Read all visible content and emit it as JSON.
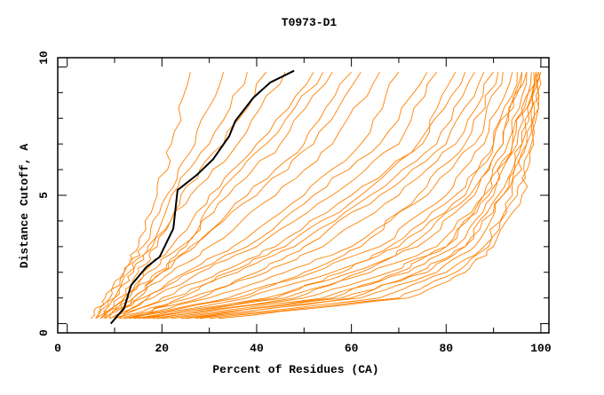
{
  "chart_data": {
    "type": "line",
    "title": "T0973-D1",
    "xlabel": "Percent of Residues (CA)",
    "ylabel": "Distance Cutoff, A",
    "xlim": [
      -2,
      101.7
    ],
    "ylim": [
      -0.36,
      10.36
    ],
    "xticks": [
      0,
      20,
      40,
      60,
      80,
      100
    ],
    "xticks_minor": [
      10,
      30,
      50,
      70,
      90
    ],
    "yticks": [
      0,
      5,
      10
    ],
    "yticks_minor": [
      1,
      2,
      3,
      4,
      6,
      7,
      8,
      9
    ],
    "grid": false,
    "colors": {
      "other_models": "#ff8000",
      "highlighted_model": "#000000"
    },
    "highlighted_series": {
      "name": "highlighted model",
      "points": [
        [
          9.2,
          0
        ],
        [
          12,
          0.6
        ],
        [
          13.5,
          1.5
        ],
        [
          16.7,
          2.2
        ],
        [
          19.5,
          2.6
        ],
        [
          22.4,
          3.7
        ],
        [
          23.3,
          5.2
        ],
        [
          27.4,
          5.8
        ],
        [
          30.8,
          6.4
        ],
        [
          34.2,
          7.3
        ],
        [
          35.5,
          7.9
        ],
        [
          39.3,
          8.8
        ],
        [
          42.9,
          9.4
        ],
        [
          47.9,
          9.85
        ]
      ]
    },
    "series": [
      [
        [
          6,
          0.2
        ],
        [
          9,
          1
        ],
        [
          12,
          2
        ],
        [
          15,
          3
        ],
        [
          19,
          5
        ],
        [
          22,
          7
        ],
        [
          26,
          9.8
        ]
      ],
      [
        [
          5,
          0.2
        ],
        [
          8,
          1
        ],
        [
          12,
          2
        ],
        [
          16,
          3
        ],
        [
          21,
          5
        ],
        [
          27,
          7
        ],
        [
          33,
          9.8
        ]
      ],
      [
        [
          7,
          0.2
        ],
        [
          10,
          1
        ],
        [
          13,
          2
        ],
        [
          17,
          3
        ],
        [
          22,
          5
        ],
        [
          30,
          7
        ],
        [
          38,
          9.8
        ]
      ],
      [
        [
          8,
          0.2
        ],
        [
          11,
          1
        ],
        [
          15,
          2
        ],
        [
          19,
          3
        ],
        [
          24,
          5
        ],
        [
          33,
          7
        ],
        [
          42,
          9.8
        ]
      ],
      [
        [
          6,
          0.2
        ],
        [
          10,
          1
        ],
        [
          14,
          2
        ],
        [
          18,
          3
        ],
        [
          26,
          5
        ],
        [
          36,
          7
        ],
        [
          46,
          9.8
        ]
      ],
      [
        [
          9,
          0.2
        ],
        [
          13,
          1
        ],
        [
          16,
          2
        ],
        [
          22,
          3
        ],
        [
          30,
          5
        ],
        [
          40,
          7
        ],
        [
          52,
          9.8
        ]
      ],
      [
        [
          7,
          0.2
        ],
        [
          12,
          1
        ],
        [
          17,
          2
        ],
        [
          24,
          3
        ],
        [
          34,
          5
        ],
        [
          45,
          7
        ],
        [
          56,
          9.8
        ]
      ],
      [
        [
          10,
          0.2
        ],
        [
          14,
          1
        ],
        [
          20,
          2
        ],
        [
          27,
          3
        ],
        [
          38,
          5
        ],
        [
          50,
          7
        ],
        [
          60,
          9.8
        ]
      ],
      [
        [
          8,
          0.2
        ],
        [
          14,
          1
        ],
        [
          22,
          2
        ],
        [
          30,
          3
        ],
        [
          44,
          5
        ],
        [
          56,
          7
        ],
        [
          66,
          9.8
        ]
      ],
      [
        [
          9,
          0.2
        ],
        [
          16,
          1
        ],
        [
          25,
          2
        ],
        [
          35,
          3
        ],
        [
          50,
          5
        ],
        [
          62,
          7
        ],
        [
          70,
          9.8
        ]
      ],
      [
        [
          10,
          0.2
        ],
        [
          18,
          1
        ],
        [
          28,
          2
        ],
        [
          40,
          3
        ],
        [
          56,
          5
        ],
        [
          70,
          7
        ],
        [
          78,
          9.8
        ]
      ],
      [
        [
          11,
          0.2
        ],
        [
          20,
          1
        ],
        [
          32,
          2
        ],
        [
          44,
          3
        ],
        [
          60,
          5
        ],
        [
          75,
          7
        ],
        [
          82,
          9.8
        ]
      ],
      [
        [
          9,
          0.2
        ],
        [
          22,
          1
        ],
        [
          36,
          2
        ],
        [
          48,
          3
        ],
        [
          64,
          5
        ],
        [
          78,
          7
        ],
        [
          86,
          9.8
        ]
      ],
      [
        [
          10,
          0.2
        ],
        [
          26,
          1
        ],
        [
          42,
          2
        ],
        [
          54,
          3
        ],
        [
          70,
          5
        ],
        [
          82,
          7
        ],
        [
          90,
          9.8
        ]
      ],
      [
        [
          12,
          0.2
        ],
        [
          30,
          1
        ],
        [
          46,
          2
        ],
        [
          60,
          3
        ],
        [
          76,
          5
        ],
        [
          86,
          7
        ],
        [
          92,
          9.8
        ]
      ],
      [
        [
          12,
          0.2
        ],
        [
          34,
          1
        ],
        [
          52,
          2
        ],
        [
          66,
          3
        ],
        [
          80,
          5
        ],
        [
          88,
          7
        ],
        [
          94,
          9.8
        ]
      ],
      [
        [
          14,
          0.2
        ],
        [
          38,
          1
        ],
        [
          56,
          2
        ],
        [
          70,
          3
        ],
        [
          84,
          5
        ],
        [
          90,
          7
        ],
        [
          95,
          9.8
        ]
      ],
      [
        [
          15,
          0.2
        ],
        [
          42,
          1
        ],
        [
          60,
          2
        ],
        [
          74,
          3
        ],
        [
          86,
          5
        ],
        [
          92,
          7
        ],
        [
          96,
          9.8
        ]
      ],
      [
        [
          16,
          0.2
        ],
        [
          46,
          1
        ],
        [
          64,
          2
        ],
        [
          78,
          3
        ],
        [
          88,
          5
        ],
        [
          93,
          7
        ],
        [
          97,
          9.8
        ]
      ],
      [
        [
          18,
          0.2
        ],
        [
          50,
          1
        ],
        [
          68,
          2
        ],
        [
          80,
          3
        ],
        [
          89,
          5
        ],
        [
          94,
          7
        ],
        [
          98,
          9.8
        ]
      ],
      [
        [
          20,
          0.2
        ],
        [
          54,
          1
        ],
        [
          72,
          2
        ],
        [
          82,
          3
        ],
        [
          90,
          5
        ],
        [
          95,
          7
        ],
        [
          98.5,
          9.8
        ]
      ],
      [
        [
          22,
          0.2
        ],
        [
          58,
          1
        ],
        [
          76,
          2
        ],
        [
          84,
          3
        ],
        [
          91,
          5
        ],
        [
          96,
          7
        ],
        [
          99,
          9.8
        ]
      ],
      [
        [
          25,
          0.2
        ],
        [
          62,
          1
        ],
        [
          78,
          2
        ],
        [
          86,
          3
        ],
        [
          92,
          5
        ],
        [
          96,
          7
        ],
        [
          99,
          9.8
        ]
      ],
      [
        [
          28,
          0.2
        ],
        [
          66,
          1
        ],
        [
          80,
          2
        ],
        [
          88,
          3
        ],
        [
          94,
          5
        ],
        [
          97,
          7
        ],
        [
          99.5,
          9.8
        ]
      ],
      [
        [
          30,
          0.2
        ],
        [
          70,
          1
        ],
        [
          82,
          2
        ],
        [
          89,
          3
        ],
        [
          95,
          5
        ],
        [
          98,
          7
        ],
        [
          99.5,
          9.8
        ]
      ],
      [
        [
          32,
          0.2
        ],
        [
          72,
          1
        ],
        [
          84,
          2
        ],
        [
          90,
          3
        ],
        [
          96,
          5
        ],
        [
          98.5,
          7
        ],
        [
          100,
          9.8
        ]
      ],
      [
        [
          11,
          0.2
        ],
        [
          28,
          1
        ],
        [
          40,
          2
        ],
        [
          50,
          3
        ],
        [
          66,
          5
        ],
        [
          80,
          7
        ],
        [
          88,
          9.8
        ]
      ],
      [
        [
          13,
          0.2
        ],
        [
          36,
          1
        ],
        [
          50,
          2
        ],
        [
          62,
          3
        ],
        [
          74,
          5
        ],
        [
          84,
          7
        ],
        [
          91,
          9.8
        ]
      ],
      [
        [
          17,
          0.2
        ],
        [
          44,
          1
        ],
        [
          58,
          2
        ],
        [
          68,
          3
        ],
        [
          82,
          5
        ],
        [
          90,
          7
        ],
        [
          97,
          9.8
        ]
      ],
      [
        [
          19,
          0.2
        ],
        [
          48,
          1
        ],
        [
          62,
          2
        ],
        [
          72,
          3
        ],
        [
          85,
          5
        ],
        [
          92,
          7
        ],
        [
          96,
          9.8
        ]
      ],
      [
        [
          24,
          0.2
        ],
        [
          56,
          1
        ],
        [
          70,
          2
        ],
        [
          80,
          3
        ],
        [
          88,
          5
        ],
        [
          94,
          7
        ],
        [
          99,
          9.8
        ]
      ],
      [
        [
          27,
          0.2
        ],
        [
          60,
          1
        ],
        [
          74,
          2
        ],
        [
          84,
          3
        ],
        [
          92,
          5
        ],
        [
          97,
          7
        ],
        [
          100,
          9.8
        ]
      ],
      [
        [
          8,
          0.2
        ],
        [
          15,
          1
        ],
        [
          20,
          2
        ],
        [
          25,
          3
        ],
        [
          32,
          5
        ],
        [
          42,
          7
        ],
        [
          54,
          9.8
        ]
      ],
      [
        [
          6,
          0.2
        ],
        [
          12,
          1
        ],
        [
          19,
          2
        ],
        [
          26,
          3
        ],
        [
          40,
          5
        ],
        [
          52,
          7
        ],
        [
          62,
          9.8
        ]
      ],
      [
        [
          10,
          0.2
        ],
        [
          17,
          1
        ],
        [
          26,
          2
        ],
        [
          38,
          3
        ],
        [
          52,
          5
        ],
        [
          66,
          7
        ],
        [
          76,
          9.8
        ]
      ],
      [
        [
          14,
          0.2
        ],
        [
          24,
          1
        ],
        [
          34,
          2
        ],
        [
          46,
          3
        ],
        [
          62,
          5
        ],
        [
          74,
          7
        ],
        [
          84,
          9.8
        ]
      ]
    ]
  }
}
